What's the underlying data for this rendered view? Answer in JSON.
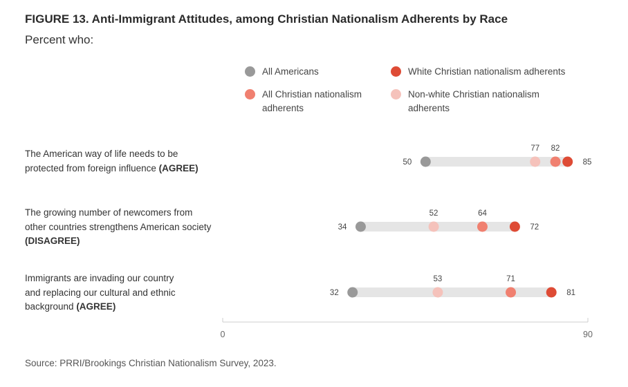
{
  "title": "FIGURE 13. Anti-Immigrant Attitudes, among Christian Nationalism Adherents by Race",
  "subtitle": "Percent who:",
  "source": "Source: PRRI/Brookings Christian Nationalism Survey, 2023.",
  "colors": {
    "all_americans": "#999999",
    "all_cn": "#f08070",
    "white_cn": "#de4b35",
    "nonwhite_cn": "#f5c2bb",
    "track": "#e5e5e5"
  },
  "legend": [
    {
      "key": "all_americans",
      "label": "All Americans"
    },
    {
      "key": "white_cn",
      "label": "White Christian nationalism adherents"
    },
    {
      "key": "all_cn",
      "label": "All Christian nationalism adherents"
    },
    {
      "key": "nonwhite_cn",
      "label": "Non-white Christian nationalism adherents"
    }
  ],
  "rows": [
    {
      "text": "The American way of life needs to be protected from foreign influence",
      "tag": "(AGREE)"
    },
    {
      "text": "The growing number of newcomers from other countries strengthens American society",
      "tag": "(DISAGREE)"
    },
    {
      "text": "Immigrants are invading our country and replacing our cultural and ethnic background",
      "tag": "(AGREE)"
    }
  ],
  "chart_data": {
    "type": "scatter",
    "subtype": "dot-plot",
    "categories": [
      "The American way of life needs to be protected from foreign influence (AGREE)",
      "The growing number of newcomers from other countries strengthens American society (DISAGREE)",
      "Immigrants are invading our country and replacing our cultural and ethnic background (AGREE)"
    ],
    "series": [
      {
        "name": "All Americans",
        "key": "all_americans",
        "values": [
          50,
          34,
          32
        ]
      },
      {
        "name": "Non-white Christian nationalism adherents",
        "key": "nonwhite_cn",
        "values": [
          77,
          52,
          53
        ]
      },
      {
        "name": "All Christian nationalism adherents",
        "key": "all_cn",
        "values": [
          82,
          64,
          71
        ]
      },
      {
        "name": "White Christian nationalism adherents",
        "key": "white_cn",
        "values": [
          85,
          72,
          81
        ]
      }
    ],
    "xlim": [
      0,
      90
    ],
    "xticks": [
      0,
      90
    ],
    "grid": false,
    "legend_position": "top-right"
  }
}
